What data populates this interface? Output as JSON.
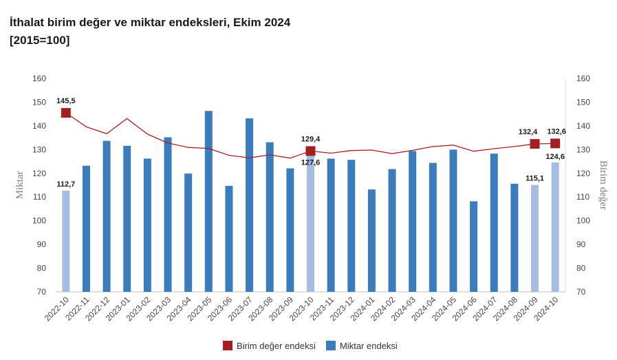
{
  "header": {
    "title": "İthalat birim değer ve miktar endeksleri, Ekim 2024",
    "subtitle": "[2015=100]"
  },
  "chart_data": {
    "type": "bar",
    "title": "İthalat birim değer ve miktar endeksleri, Ekim 2024",
    "subtitle": "[2015=100]",
    "categories": [
      "2022-10",
      "2022-11",
      "2022-12",
      "2023-01",
      "2023-02",
      "2023-03",
      "2023-04",
      "2023-05",
      "2023-06",
      "2023-07",
      "2023-08",
      "2023-09",
      "2023-10",
      "2023-11",
      "2023-12",
      "2024-01",
      "2024-02",
      "2024-03",
      "2024-04",
      "2024-05",
      "2024-06",
      "2024-07",
      "2024-08",
      "2024-09",
      "2024-10"
    ],
    "y_left": {
      "label": "Miktar",
      "min": 70,
      "max": 160,
      "step": 10
    },
    "y_right": {
      "label": "Birim değer",
      "min": 70,
      "max": 160,
      "step": 10
    },
    "series": [
      {
        "name": "Miktar endeksi",
        "type": "bar",
        "axis": "left",
        "color": "#3a7dbf",
        "highlight_color": "#a6bde3",
        "values": [
          112.7,
          123.2,
          133.7,
          131.6,
          126.2,
          135.2,
          119.9,
          146.3,
          114.7,
          143.2,
          133.1,
          122.1,
          127.6,
          126.2,
          125.7,
          113.2,
          121.8,
          129.4,
          124.4,
          130.0,
          108.2,
          128.3,
          115.6,
          115.1,
          124.6
        ],
        "highlighted": [
          0,
          12,
          23,
          24
        ]
      },
      {
        "name": "Birim değer endeksi",
        "type": "line",
        "axis": "right",
        "color": "#a51e22",
        "values": [
          145.5,
          139.6,
          136.7,
          143.1,
          136.5,
          132.8,
          130.9,
          130.5,
          127.6,
          126.5,
          127.8,
          126.4,
          129.4,
          128.5,
          129.6,
          129.8,
          128.3,
          129.7,
          131.3,
          131.9,
          129.3,
          130.4,
          131.3,
          132.4,
          132.6
        ],
        "markers": [
          0,
          12,
          23,
          24
        ]
      }
    ],
    "data_labels": [
      {
        "series": "Miktar endeksi",
        "index": 0,
        "text": "112,7"
      },
      {
        "series": "Miktar endeksi",
        "index": 12,
        "text": "127,6"
      },
      {
        "series": "Miktar endeksi",
        "index": 23,
        "text": "115,1"
      },
      {
        "series": "Miktar endeksi",
        "index": 24,
        "text": "124,6"
      },
      {
        "series": "Birim değer endeksi",
        "index": 0,
        "text": "145,5"
      },
      {
        "series": "Birim değer endeksi",
        "index": 12,
        "text": "129,4"
      },
      {
        "series": "Birim değer endeksi",
        "index": 23,
        "text": "132,4"
      },
      {
        "series": "Birim değer endeksi",
        "index": 24,
        "text": "132,6"
      }
    ],
    "legend": {
      "position": "bottom",
      "items": [
        {
          "label": "Birim değer endeksi",
          "color": "#a51e22"
        },
        {
          "label": "Miktar endeksi",
          "color": "#3a7dbf"
        }
      ]
    },
    "grid": false
  }
}
